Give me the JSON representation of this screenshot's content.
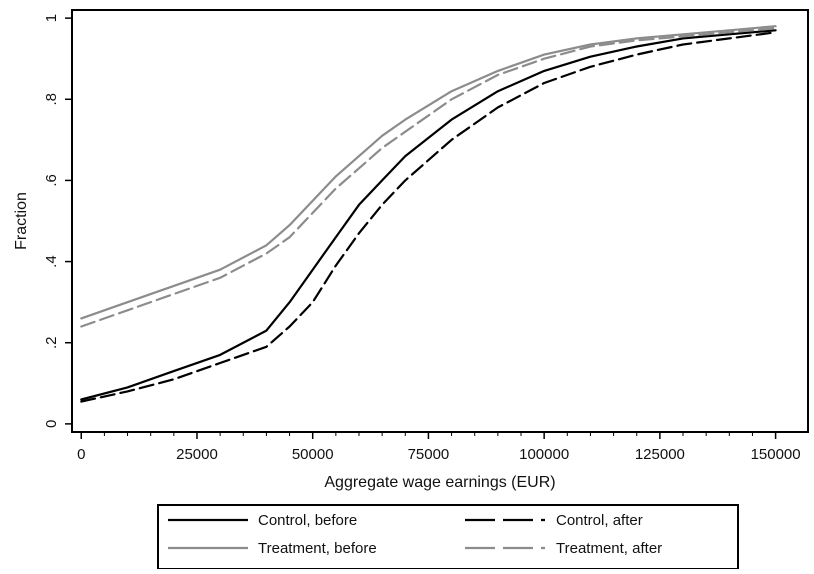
{
  "chart_data": {
    "type": "line",
    "xlabel": "Aggregate wage earnings (EUR)",
    "ylabel": "Fraction",
    "xlim": [
      -2000,
      157000
    ],
    "ylim": [
      -0.02,
      1.02
    ],
    "x_ticks": [
      0,
      25000,
      50000,
      75000,
      100000,
      125000,
      150000
    ],
    "x_tick_labels": [
      "0",
      "25000",
      "50000",
      "75000",
      "100000",
      "125000",
      "150000"
    ],
    "y_ticks": [
      0,
      0.2,
      0.4,
      0.6,
      0.8,
      1
    ],
    "y_tick_labels": [
      "0",
      ".2",
      ".4",
      ".6",
      ".8",
      "1"
    ],
    "grid": false,
    "legend_position": "bottom",
    "series": [
      {
        "name": "Control, before",
        "color": "#000000",
        "dash": "solid",
        "x": [
          0,
          10000,
          20000,
          30000,
          40000,
          45000,
          50000,
          55000,
          60000,
          65000,
          70000,
          80000,
          90000,
          100000,
          110000,
          120000,
          130000,
          140000,
          150000
        ],
        "y": [
          0.06,
          0.09,
          0.13,
          0.17,
          0.23,
          0.3,
          0.38,
          0.46,
          0.54,
          0.6,
          0.66,
          0.75,
          0.82,
          0.87,
          0.905,
          0.93,
          0.95,
          0.96,
          0.97
        ]
      },
      {
        "name": "Control, after",
        "color": "#000000",
        "dash": "dashed",
        "x": [
          0,
          10000,
          20000,
          30000,
          40000,
          45000,
          50000,
          55000,
          60000,
          65000,
          70000,
          80000,
          90000,
          100000,
          110000,
          120000,
          130000,
          140000,
          150000
        ],
        "y": [
          0.055,
          0.08,
          0.11,
          0.15,
          0.19,
          0.24,
          0.3,
          0.39,
          0.47,
          0.54,
          0.6,
          0.7,
          0.78,
          0.84,
          0.88,
          0.91,
          0.935,
          0.95,
          0.965
        ]
      },
      {
        "name": "Treatment, before",
        "color": "#8c8c8c",
        "dash": "solid",
        "x": [
          0,
          10000,
          20000,
          30000,
          40000,
          45000,
          50000,
          55000,
          60000,
          65000,
          70000,
          80000,
          90000,
          100000,
          110000,
          120000,
          130000,
          140000,
          150000
        ],
        "y": [
          0.26,
          0.3,
          0.34,
          0.38,
          0.44,
          0.49,
          0.55,
          0.61,
          0.66,
          0.71,
          0.75,
          0.82,
          0.87,
          0.91,
          0.935,
          0.95,
          0.96,
          0.97,
          0.98
        ]
      },
      {
        "name": "Treatment, after",
        "color": "#8c8c8c",
        "dash": "dashed",
        "x": [
          0,
          10000,
          20000,
          30000,
          40000,
          45000,
          50000,
          55000,
          60000,
          65000,
          70000,
          80000,
          90000,
          100000,
          110000,
          120000,
          130000,
          140000,
          150000
        ],
        "y": [
          0.24,
          0.28,
          0.32,
          0.36,
          0.42,
          0.46,
          0.52,
          0.58,
          0.63,
          0.68,
          0.72,
          0.8,
          0.86,
          0.9,
          0.93,
          0.945,
          0.955,
          0.965,
          0.975
        ]
      }
    ]
  }
}
